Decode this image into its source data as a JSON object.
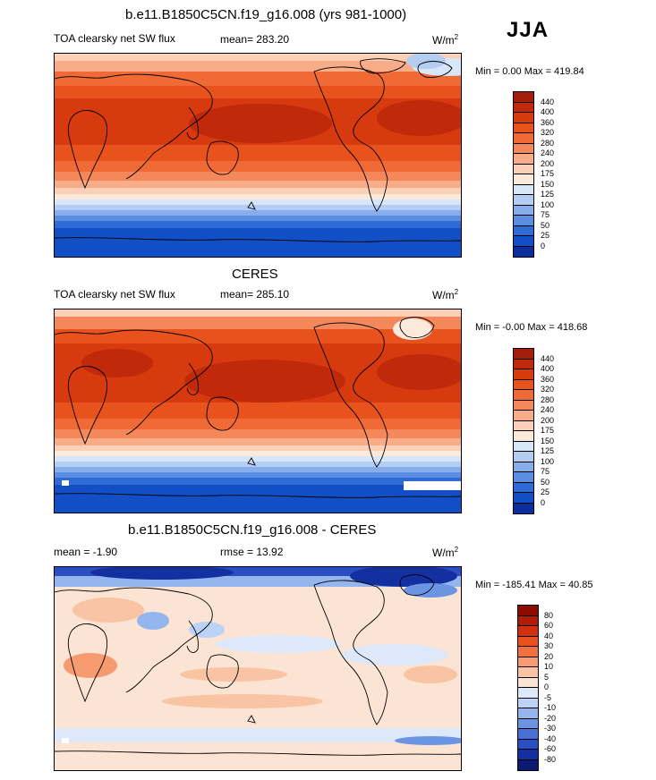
{
  "season": "JJA",
  "panels": [
    {
      "title": "b.e11.B1850C5CN.f19_g16.008 (yrs 981-1000)",
      "variable": "TOA clearsky net SW flux",
      "stat": "mean= 283.20",
      "units_base": "W/m",
      "units_exp": "2",
      "minmax": "Min =   0.00 Max = 419.84",
      "colorbar": {
        "levels": [
          "440",
          "400",
          "360",
          "320",
          "280",
          "240",
          "200",
          "175",
          "150",
          "125",
          "100",
          "75",
          "50",
          "25",
          "0"
        ],
        "colors": [
          "#a51e0a",
          "#c02a0a",
          "#d83a10",
          "#e8521c",
          "#f06a36",
          "#f5885a",
          "#f9ac88",
          "#fcd0b6",
          "#fbe9dc",
          "#d7e6f9",
          "#b3cdf3",
          "#87aeeb",
          "#5b8ee3",
          "#2f6bd6",
          "#124fc7",
          "#0b2e9c"
        ]
      },
      "map_kind": "flux"
    },
    {
      "title": "CERES",
      "variable": "TOA clearsky net SW flux",
      "stat": "mean= 285.10",
      "units_base": "W/m",
      "units_exp": "2",
      "minmax": "Min =  -0.00 Max = 418.68",
      "colorbar": {
        "levels": [
          "440",
          "400",
          "360",
          "320",
          "280",
          "240",
          "200",
          "175",
          "150",
          "125",
          "100",
          "75",
          "50",
          "25",
          "0"
        ],
        "colors": [
          "#a51e0a",
          "#c02a0a",
          "#d83a10",
          "#e8521c",
          "#f06a36",
          "#f5885a",
          "#f9ac88",
          "#fcd0b6",
          "#fbe9dc",
          "#d7e6f9",
          "#b3cdf3",
          "#87aeeb",
          "#5b8ee3",
          "#2f6bd6",
          "#124fc7",
          "#0b2e9c"
        ]
      },
      "map_kind": "flux"
    },
    {
      "title": "b.e11.B1850C5CN.f19_g16.008 - CERES",
      "variable": "mean =  -1.90",
      "stat": "rmse =  13.92",
      "units_base": "W/m",
      "units_exp": "2",
      "minmax": "Min = -185.41 Max =  40.85",
      "colorbar": {
        "levels": [
          "80",
          "60",
          "40",
          "30",
          "20",
          "10",
          "5",
          "0",
          "-5",
          "-10",
          "-20",
          "-30",
          "-40",
          "-60",
          "-80"
        ],
        "colors": [
          "#8c0c00",
          "#b01c06",
          "#d2300e",
          "#e8501c",
          "#f27040",
          "#f69a70",
          "#f9c4a4",
          "#fbe4d4",
          "#dde9fa",
          "#bcd2f6",
          "#94b5ee",
          "#6b94e3",
          "#4670d6",
          "#2a4fc4",
          "#142fa0",
          "#0a1a70"
        ]
      },
      "map_kind": "diff"
    }
  ]
}
